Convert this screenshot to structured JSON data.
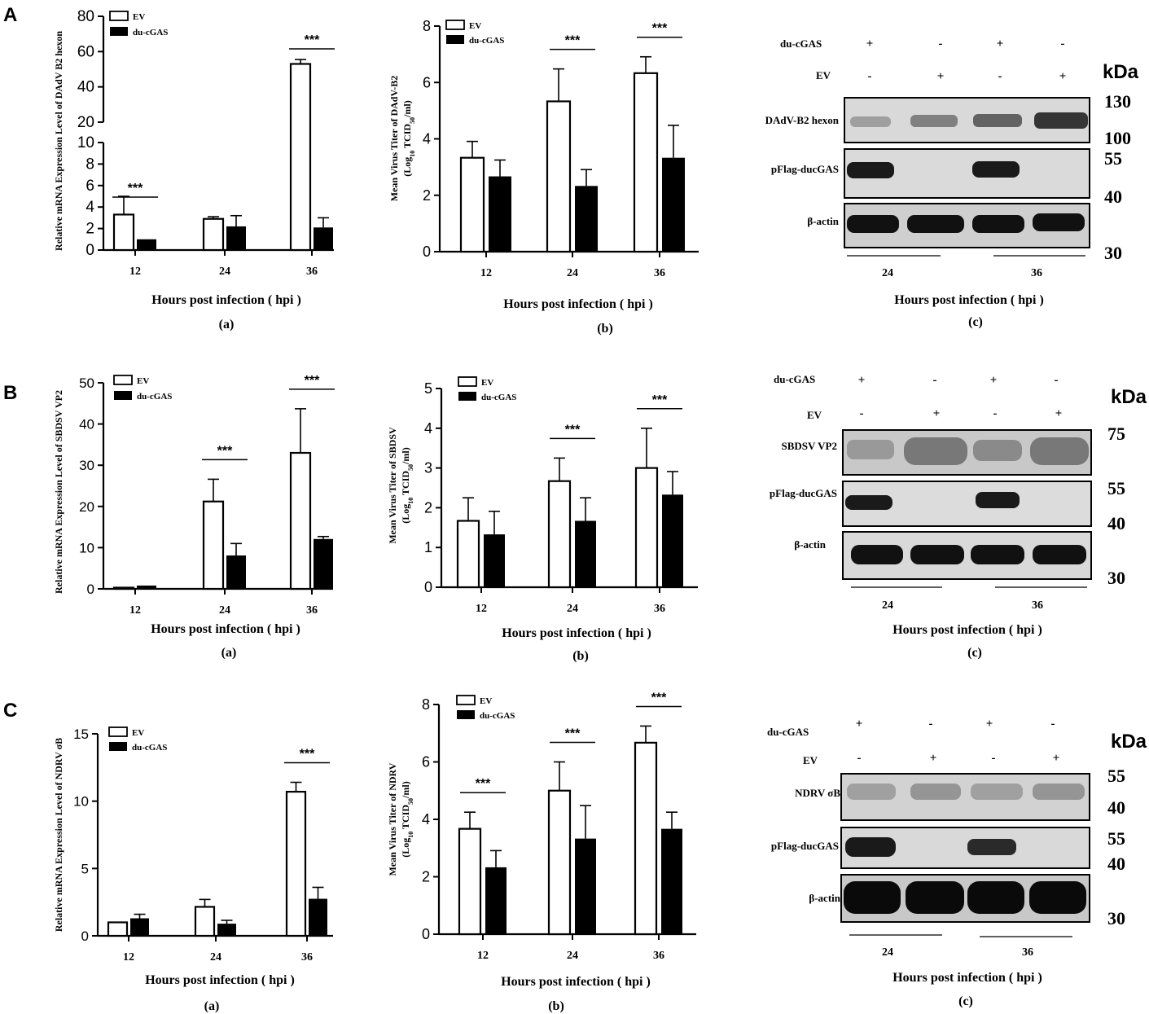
{
  "legend": {
    "ev": "EV",
    "du": "du-cGAS"
  },
  "xlabel": "Hours post infection ( hpi )",
  "kda_label": "kDa",
  "significance": "***",
  "panels": [
    {
      "letter": "A",
      "charts": [
        {
          "id": "A-a",
          "type": "bar",
          "sublabel": "(a)",
          "ylabel": "Relative mRNA Expression Level of DAdV B2 hexon",
          "categories": [
            "12",
            "24",
            "36"
          ],
          "yticks": [
            0,
            2,
            4,
            6,
            8,
            10,
            20,
            40,
            60,
            80
          ],
          "broken_axis": {
            "lower": [
              0,
              10
            ],
            "upper": [
              20,
              80
            ]
          },
          "series": [
            {
              "name": "EV",
              "fill": "white",
              "values": [
                3.3,
                2.9,
                53
              ],
              "errors": [
                1.7,
                0.2,
                2.5
              ]
            },
            {
              "name": "du-cGAS",
              "fill": "black",
              "values": [
                1.0,
                2.2,
                2.1
              ],
              "errors": [
                0,
                1.0,
                0.9
              ]
            }
          ],
          "sig": [
            0,
            2
          ]
        },
        {
          "id": "A-b",
          "type": "bar",
          "sublabel": "(b)",
          "ylabel": "Mean Virus Titer of DAdV-B2",
          "ylabel2": "(Log10 TCID50/ml)",
          "categories": [
            "12",
            "24",
            "36"
          ],
          "yticks": [
            0,
            2,
            4,
            6,
            8
          ],
          "ylim": [
            0,
            8
          ],
          "series": [
            {
              "name": "EV",
              "fill": "white",
              "values": [
                3.33,
                5.33,
                6.33
              ],
              "errors": [
                0.58,
                1.15,
                0.58
              ]
            },
            {
              "name": "du-cGAS",
              "fill": "black",
              "values": [
                2.67,
                2.33,
                3.33
              ],
              "errors": [
                0.58,
                0.58,
                1.15
              ]
            }
          ],
          "sig": [
            1,
            2
          ]
        }
      ],
      "blot": {
        "sublabel": "(c)",
        "rows": [
          {
            "label": "du-cGAS",
            "marks": [
              "+",
              "-",
              "+",
              "-"
            ]
          },
          {
            "label": "EV",
            "marks": [
              "-",
              "+",
              "-",
              "+"
            ]
          }
        ],
        "bands": [
          "DAdV-B2 hexon",
          "pFlag-ducGAS",
          "β-actin"
        ],
        "kda": [
          "130",
          "100",
          "55",
          "40",
          "30"
        ],
        "times": [
          "24",
          "36"
        ]
      }
    },
    {
      "letter": "B",
      "charts": [
        {
          "id": "B-a",
          "type": "bar",
          "sublabel": "(a)",
          "ylabel": "Relative mRNA Expression Level of SBDSV VP2",
          "categories": [
            "12",
            "24",
            "36"
          ],
          "yticks": [
            0,
            10,
            20,
            30,
            40,
            50
          ],
          "ylim": [
            0,
            50
          ],
          "series": [
            {
              "name": "EV",
              "fill": "white",
              "values": [
                0.3,
                21.2,
                33
              ],
              "errors": [
                0,
                5.4,
                10.7
              ]
            },
            {
              "name": "du-cGAS",
              "fill": "black",
              "values": [
                0.8,
                8.1,
                12.1
              ],
              "errors": [
                0,
                2.9,
                0.6
              ]
            }
          ],
          "sig": [
            1,
            2
          ]
        },
        {
          "id": "B-b",
          "type": "bar",
          "sublabel": "(b)",
          "ylabel": "Mean Virus Titer of SBDSV",
          "ylabel2": "(Log10 TCID50/ml)",
          "categories": [
            "12",
            "24",
            "36"
          ],
          "yticks": [
            0,
            1,
            2,
            3,
            4,
            5
          ],
          "ylim": [
            0,
            5
          ],
          "series": [
            {
              "name": "EV",
              "fill": "white",
              "values": [
                1.67,
                2.67,
                3.0
              ],
              "errors": [
                0.58,
                0.58,
                1.0
              ]
            },
            {
              "name": "du-cGAS",
              "fill": "black",
              "values": [
                1.33,
                1.67,
                2.33
              ],
              "errors": [
                0.58,
                0.58,
                0.58
              ]
            }
          ],
          "sig": [
            1,
            2
          ]
        }
      ],
      "blot": {
        "sublabel": "(c)",
        "rows": [
          {
            "label": "du-cGAS",
            "marks": [
              "+",
              "-",
              "+",
              "-"
            ]
          },
          {
            "label": "EV",
            "marks": [
              "-",
              "+",
              "-",
              "+"
            ]
          }
        ],
        "bands": [
          "SBDSV VP2",
          "pFlag-ducGAS",
          "β-actin"
        ],
        "kda": [
          "75",
          "55",
          "40",
          "30"
        ],
        "times": [
          "24",
          "36"
        ]
      }
    },
    {
      "letter": "C",
      "charts": [
        {
          "id": "C-a",
          "type": "bar",
          "sublabel": "(a)",
          "ylabel": "Relative mRNA Expression Level of NDRV σB",
          "categories": [
            "12",
            "24",
            "36"
          ],
          "yticks": [
            0,
            5,
            10,
            15
          ],
          "ylim": [
            0,
            15
          ],
          "series": [
            {
              "name": "EV",
              "fill": "white",
              "values": [
                1.0,
                2.15,
                10.7
              ],
              "errors": [
                0,
                0.55,
                0.7
              ]
            },
            {
              "name": "du-cGAS",
              "fill": "black",
              "values": [
                1.3,
                0.9,
                2.75
              ],
              "errors": [
                0.3,
                0.25,
                0.85
              ]
            }
          ],
          "sig": [
            2
          ]
        },
        {
          "id": "C-b",
          "type": "bar",
          "sublabel": "(b)",
          "ylabel": "Mean Virus Titer of NDRV",
          "ylabel2": "(Log10 TCID50/ml)",
          "categories": [
            "12",
            "24",
            "36"
          ],
          "yticks": [
            0,
            2,
            4,
            6,
            8
          ],
          "ylim": [
            0,
            8
          ],
          "series": [
            {
              "name": "EV",
              "fill": "white",
              "values": [
                3.67,
                5.0,
                6.67
              ],
              "errors": [
                0.58,
                1.0,
                0.58
              ]
            },
            {
              "name": "du-cGAS",
              "fill": "black",
              "values": [
                2.33,
                3.33,
                3.67
              ],
              "errors": [
                0.58,
                1.15,
                0.58
              ]
            }
          ],
          "sig": [
            0,
            1,
            2
          ]
        }
      ],
      "blot": {
        "sublabel": "(c)",
        "rows": [
          {
            "label": "du-cGAS",
            "marks": [
              "+",
              "-",
              "+",
              "-"
            ]
          },
          {
            "label": "EV",
            "marks": [
              "-",
              "+",
              "-",
              "+"
            ]
          }
        ],
        "bands": [
          "NDRV σB",
          "pFlag-ducGAS",
          "β-actin"
        ],
        "kda": [
          "55",
          "40",
          "55",
          "40",
          "30"
        ],
        "times": [
          "24",
          "36"
        ]
      }
    }
  ]
}
